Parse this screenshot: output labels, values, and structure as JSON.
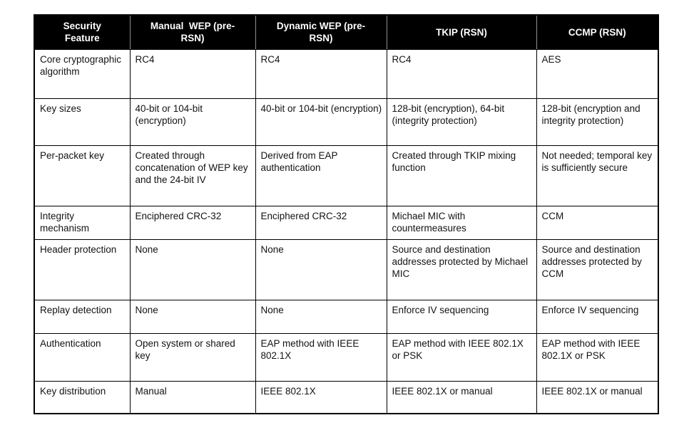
{
  "colors": {
    "header_background": "#000000",
    "header_text": "#ffffff",
    "body_text": "#131313",
    "border": "#000000",
    "page_background": "#ffffff"
  },
  "table": {
    "columns": [
      "Security Feature",
      "Manual  WEP (pre-RSN)",
      "Dynamic WEP (pre-RSN)",
      "TKIP (RSN)",
      "CCMP (RSN)"
    ],
    "rows": [
      {
        "feature": "Core cryptographic algorithm",
        "cells": [
          "RC4",
          "RC4",
          "RC4",
          "AES"
        ]
      },
      {
        "feature": "Key sizes",
        "cells": [
          "40-bit or 104-bit (encryption)",
          "40-bit or 104-bit (encryption)",
          "128-bit (encryption), 64-bit (integrity protection)",
          "128-bit (encryption and integrity protection)"
        ]
      },
      {
        "feature": "Per-packet key",
        "cells": [
          "Created through concatenation of WEP key and the 24-bit IV",
          "Derived from EAP authentication",
          "Created through TKIP mixing function",
          "Not needed; temporal key is sufficiently secure"
        ]
      },
      {
        "feature": "Integrity mechanism",
        "cells": [
          "Enciphered CRC-32",
          "Enciphered CRC-32",
          "Michael MIC with countermeasures",
          "CCM"
        ]
      },
      {
        "feature": "Header protection",
        "cells": [
          "None",
          "None",
          "Source and destination addresses protected by Michael MIC",
          "Source and destination addresses protected by CCM"
        ]
      },
      {
        "feature": "Replay detection",
        "cells": [
          "None",
          "None",
          "Enforce IV sequencing",
          "Enforce IV sequencing"
        ]
      },
      {
        "feature": "Authentication",
        "cells": [
          "Open system or shared key",
          "EAP method with IEEE 802.1X",
          "EAP method with IEEE 802.1X or PSK",
          "EAP method with IEEE 802.1X or PSK"
        ]
      },
      {
        "feature": "Key distribution",
        "cells": [
          "Manual",
          "IEEE 802.1X",
          "IEEE 802.1X or manual",
          "IEEE 802.1X or manual"
        ]
      }
    ]
  }
}
